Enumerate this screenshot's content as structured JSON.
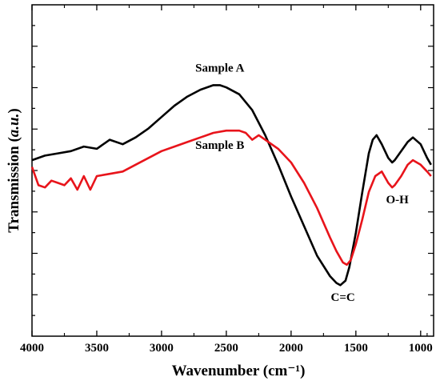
{
  "chart_data": {
    "type": "line",
    "xlabel": "Wavenumber (cm⁻¹)",
    "ylabel_main": "Transmission (",
    "ylabel_unit": "a.u.",
    "ylabel_close": ")",
    "xlim": [
      4000,
      900
    ],
    "ylim": [
      0,
      1
    ],
    "x_reversed": true,
    "y_ticks_labeled": false,
    "grid": false,
    "x_ticks": [
      4000,
      3500,
      3000,
      2500,
      2000,
      1500,
      1000
    ],
    "series": [
      {
        "name": "Sample A",
        "color": "#000000",
        "x": [
          4000,
          3900,
          3800,
          3700,
          3600,
          3500,
          3400,
          3300,
          3200,
          3100,
          3000,
          2900,
          2800,
          2700,
          2600,
          2550,
          2500,
          2400,
          2300,
          2200,
          2100,
          2000,
          1900,
          1800,
          1700,
          1650,
          1620,
          1580,
          1550,
          1500,
          1450,
          1400,
          1370,
          1340,
          1300,
          1250,
          1220,
          1200,
          1150,
          1100,
          1060,
          1000,
          950,
          920
        ],
        "y": [
          0.57,
          0.59,
          0.6,
          0.61,
          0.63,
          0.62,
          0.66,
          0.64,
          0.67,
          0.71,
          0.76,
          0.81,
          0.85,
          0.88,
          0.9,
          0.9,
          0.89,
          0.86,
          0.79,
          0.68,
          0.55,
          0.41,
          0.28,
          0.15,
          0.06,
          0.03,
          0.02,
          0.04,
          0.1,
          0.25,
          0.43,
          0.6,
          0.66,
          0.68,
          0.64,
          0.58,
          0.56,
          0.57,
          0.61,
          0.65,
          0.67,
          0.64,
          0.58,
          0.55
        ]
      },
      {
        "name": "Sample B",
        "color": "#e8141b",
        "x": [
          4000,
          3950,
          3900,
          3850,
          3800,
          3750,
          3700,
          3650,
          3600,
          3550,
          3500,
          3400,
          3300,
          3200,
          3100,
          3000,
          2900,
          2800,
          2700,
          2600,
          2500,
          2400,
          2350,
          2300,
          2250,
          2200,
          2100,
          2000,
          1900,
          1800,
          1700,
          1650,
          1600,
          1570,
          1540,
          1500,
          1450,
          1400,
          1350,
          1300,
          1250,
          1220,
          1200,
          1150,
          1100,
          1060,
          1000,
          950,
          920
        ],
        "y": [
          0.54,
          0.46,
          0.45,
          0.48,
          0.47,
          0.46,
          0.49,
          0.44,
          0.5,
          0.44,
          0.5,
          0.51,
          0.52,
          0.55,
          0.58,
          0.61,
          0.63,
          0.65,
          0.67,
          0.69,
          0.7,
          0.7,
          0.69,
          0.66,
          0.68,
          0.66,
          0.62,
          0.56,
          0.47,
          0.36,
          0.23,
          0.17,
          0.12,
          0.11,
          0.13,
          0.2,
          0.31,
          0.43,
          0.5,
          0.52,
          0.47,
          0.45,
          0.46,
          0.5,
          0.55,
          0.57,
          0.55,
          0.52,
          0.5
        ]
      }
    ],
    "annotations": [
      {
        "text": "Sample A",
        "x": 2550,
        "y": 0.96
      },
      {
        "text": "Sample B",
        "x": 2550,
        "y": 0.62
      },
      {
        "text": "C=C",
        "x": 1600,
        "y": -0.05
      },
      {
        "text": "O-H",
        "x": 1180,
        "y": 0.38
      }
    ]
  }
}
